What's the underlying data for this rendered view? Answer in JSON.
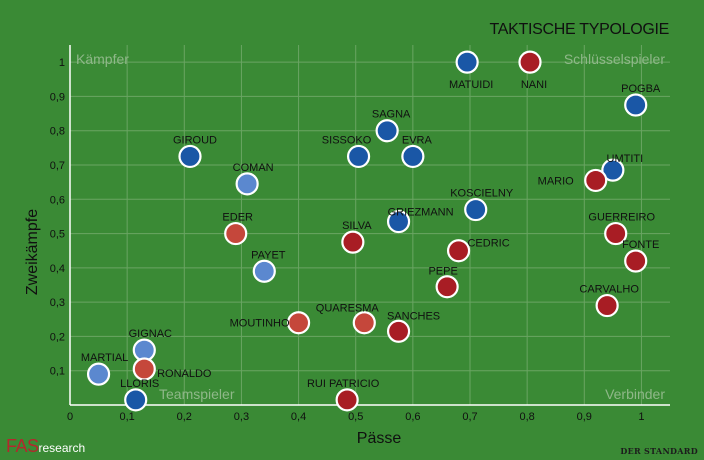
{
  "chart_data": {
    "type": "scatter",
    "title": "TAKTISCHE TYPOLOGIE",
    "xlabel": "Pässe",
    "ylabel": "Zweikämpfe",
    "xlim": [
      0,
      1.05
    ],
    "ylim": [
      0,
      1.05
    ],
    "x_ticks": [
      "0",
      "0,1",
      "0,2",
      "0,3",
      "0,4",
      "0,5",
      "0,6",
      "0,7",
      "0,8",
      "0,9",
      "1"
    ],
    "y_ticks": [
      "0,1",
      "0,2",
      "0,3",
      "0,4",
      "0,5",
      "0,6",
      "0,7",
      "0,8",
      "0,9",
      "1"
    ],
    "grid": true,
    "quadrant_labels": {
      "top_left": "Kämpfer",
      "top_right": "Schlüsselspieler",
      "bottom_left": "Teamspieler",
      "bottom_right": "Verbinder"
    },
    "colors": {
      "background": "#3a8a35",
      "france": "#1a57a6",
      "france_light": "#5b88cf",
      "portugal": "#a81d24",
      "portugal_light": "#c5473b"
    },
    "points": [
      {
        "name": "MATUIDI",
        "x": 0.695,
        "y": 1.0,
        "team": "france"
      },
      {
        "name": "NANI",
        "x": 0.805,
        "y": 1.0,
        "team": "portugal"
      },
      {
        "name": "POGBA",
        "x": 0.99,
        "y": 0.875,
        "team": "france"
      },
      {
        "name": "SAGNA",
        "x": 0.555,
        "y": 0.8,
        "team": "france"
      },
      {
        "name": "GIROUD",
        "x": 0.21,
        "y": 0.725,
        "team": "france"
      },
      {
        "name": "SISSOKO",
        "x": 0.505,
        "y": 0.725,
        "team": "france"
      },
      {
        "name": "EVRA",
        "x": 0.6,
        "y": 0.725,
        "team": "france"
      },
      {
        "name": "UMTITI",
        "x": 0.95,
        "y": 0.685,
        "team": "france"
      },
      {
        "name": "MARIO",
        "x": 0.92,
        "y": 0.655,
        "team": "portugal"
      },
      {
        "name": "COMAN",
        "x": 0.31,
        "y": 0.645,
        "team": "france_light"
      },
      {
        "name": "KOSCIELNY",
        "x": 0.71,
        "y": 0.57,
        "team": "france"
      },
      {
        "name": "GRIEZMANN",
        "x": 0.575,
        "y": 0.535,
        "team": "france"
      },
      {
        "name": "EDER",
        "x": 0.29,
        "y": 0.5,
        "team": "portugal_light"
      },
      {
        "name": "GUERREIRO",
        "x": 0.955,
        "y": 0.5,
        "team": "portugal"
      },
      {
        "name": "SILVA",
        "x": 0.495,
        "y": 0.475,
        "team": "portugal"
      },
      {
        "name": "CEDRIC",
        "x": 0.68,
        "y": 0.45,
        "team": "portugal"
      },
      {
        "name": "FONTE",
        "x": 0.99,
        "y": 0.42,
        "team": "portugal"
      },
      {
        "name": "PAYET",
        "x": 0.34,
        "y": 0.39,
        "team": "france_light"
      },
      {
        "name": "PEPE",
        "x": 0.66,
        "y": 0.345,
        "team": "portugal"
      },
      {
        "name": "CARVALHO",
        "x": 0.94,
        "y": 0.29,
        "team": "portugal"
      },
      {
        "name": "MOUTINHO",
        "x": 0.4,
        "y": 0.24,
        "team": "portugal_light"
      },
      {
        "name": "QUARESMA",
        "x": 0.515,
        "y": 0.24,
        "team": "portugal_light"
      },
      {
        "name": "SANCHES",
        "x": 0.575,
        "y": 0.215,
        "team": "portugal"
      },
      {
        "name": "GIGNAC",
        "x": 0.13,
        "y": 0.16,
        "team": "france_light"
      },
      {
        "name": "RONALDO",
        "x": 0.13,
        "y": 0.105,
        "team": "portugal_light"
      },
      {
        "name": "MARTIAL",
        "x": 0.05,
        "y": 0.09,
        "team": "france_light"
      },
      {
        "name": "LLORIS",
        "x": 0.115,
        "y": 0.015,
        "team": "france"
      },
      {
        "name": "RUI PATRICIO",
        "x": 0.485,
        "y": 0.015,
        "team": "portugal"
      }
    ]
  },
  "footer": {
    "logo_big": "FAS",
    "logo_small": "research",
    "credit": "DER STANDARD"
  }
}
